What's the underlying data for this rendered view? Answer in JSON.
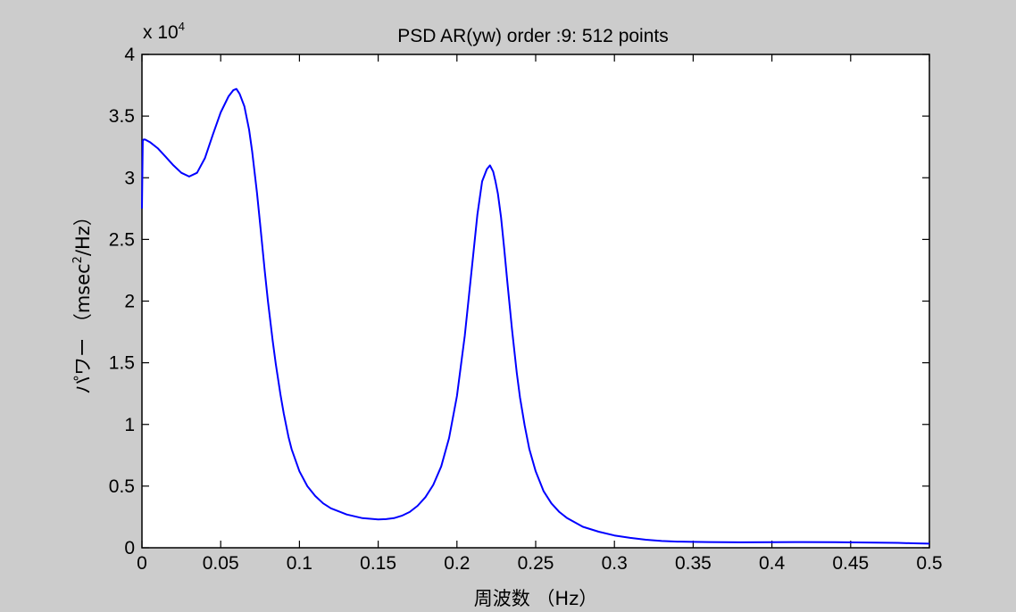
{
  "chart_data": {
    "type": "line",
    "title": "PSD AR(yw) order :9: 512 points",
    "xlabel": "周波数 （Hz）",
    "ylabel_main": "パワー （msec",
    "ylabel_sup": "2",
    "ylabel_tail": "/Hz）",
    "y_exponent_prefix": "x 10",
    "y_exponent_power": "4",
    "xlim": [
      0,
      0.5
    ],
    "ylim": [
      0,
      4
    ],
    "x_ticks": [
      0,
      0.05,
      0.1,
      0.15,
      0.2,
      0.25,
      0.3,
      0.35,
      0.4,
      0.45,
      0.5
    ],
    "x_tick_labels": [
      "0",
      "0.05",
      "0.1",
      "0.15",
      "0.2",
      "0.25",
      "0.3",
      "0.35",
      "0.4",
      "0.45",
      "0.5"
    ],
    "y_ticks": [
      0,
      0.5,
      1,
      1.5,
      2,
      2.5,
      3,
      3.5,
      4
    ],
    "y_tick_labels": [
      "0",
      "0.5",
      "1",
      "1.5",
      "2",
      "2.5",
      "3",
      "3.5",
      "4"
    ],
    "grid": false,
    "line_color": "#0000ff",
    "axes_background": "#ffffff",
    "figure_background": "#cccccc",
    "series": [
      {
        "x": [
          0,
          0.0005,
          0.001,
          0.002,
          0.005,
          0.01,
          0.015,
          0.02,
          0.025,
          0.03,
          0.035,
          0.04,
          0.045,
          0.05,
          0.055,
          0.058,
          0.06,
          0.062,
          0.065,
          0.068,
          0.07,
          0.073,
          0.075,
          0.078,
          0.08,
          0.083,
          0.085,
          0.088,
          0.09,
          0.093,
          0.095,
          0.1,
          0.105,
          0.11,
          0.115,
          0.12,
          0.13,
          0.14,
          0.15,
          0.155,
          0.16,
          0.165,
          0.17,
          0.175,
          0.18,
          0.185,
          0.19,
          0.195,
          0.2,
          0.205,
          0.21,
          0.213,
          0.216,
          0.219,
          0.221,
          0.223,
          0.2245,
          0.226,
          0.228,
          0.23,
          0.232,
          0.235,
          0.238,
          0.24,
          0.243,
          0.246,
          0.25,
          0.255,
          0.26,
          0.265,
          0.27,
          0.28,
          0.29,
          0.3,
          0.31,
          0.32,
          0.33,
          0.34,
          0.35,
          0.36,
          0.38,
          0.4,
          0.42,
          0.44,
          0.46,
          0.48,
          0.49,
          0.5
        ],
        "y": [
          2.75,
          3.3,
          3.31,
          3.31,
          3.29,
          3.24,
          3.17,
          3.1,
          3.04,
          3.01,
          3.04,
          3.16,
          3.35,
          3.53,
          3.66,
          3.71,
          3.72,
          3.68,
          3.58,
          3.39,
          3.21,
          2.88,
          2.63,
          2.24,
          2.0,
          1.68,
          1.49,
          1.24,
          1.09,
          0.9,
          0.8,
          0.62,
          0.5,
          0.42,
          0.36,
          0.32,
          0.27,
          0.24,
          0.23,
          0.232,
          0.24,
          0.26,
          0.29,
          0.34,
          0.41,
          0.51,
          0.66,
          0.89,
          1.23,
          1.72,
          2.33,
          2.7,
          2.97,
          3.07,
          3.1,
          3.05,
          2.97,
          2.87,
          2.68,
          2.43,
          2.16,
          1.77,
          1.42,
          1.22,
          0.99,
          0.8,
          0.62,
          0.46,
          0.36,
          0.29,
          0.24,
          0.17,
          0.13,
          0.1,
          0.08,
          0.065,
          0.055,
          0.05,
          0.048,
          0.046,
          0.044,
          0.045,
          0.046,
          0.045,
          0.043,
          0.04,
          0.036,
          0.033
        ]
      }
    ]
  }
}
